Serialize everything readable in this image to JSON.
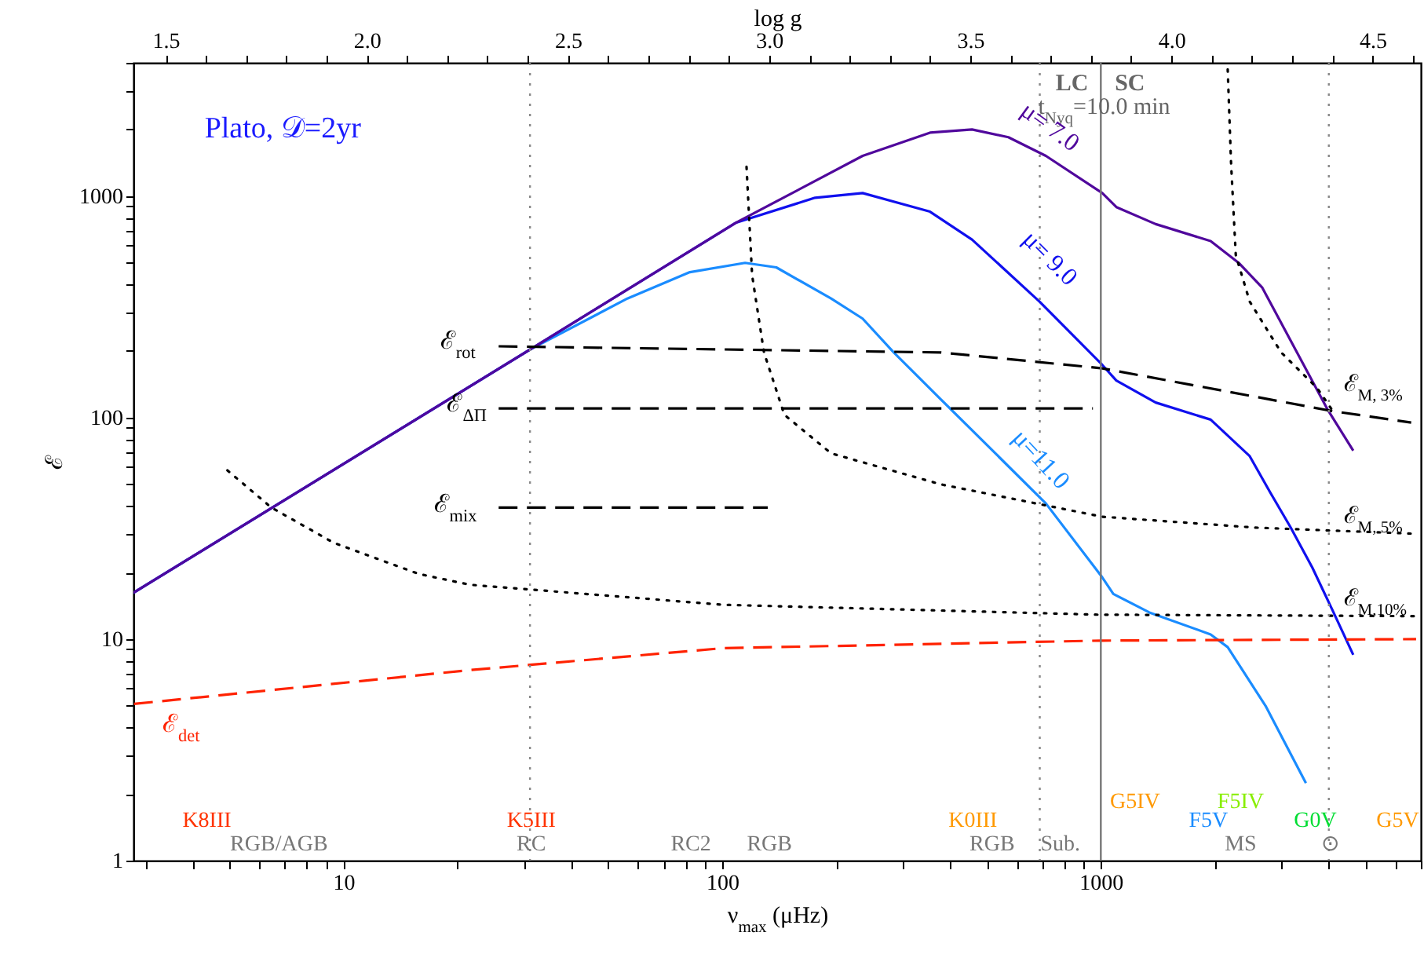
{
  "chart_data": {
    "type": "line",
    "xlabel": "ν$_{max}$ (μHz)",
    "ylabel": "ℰ",
    "x2label": "log g",
    "log": "xy",
    "xlim": [
      2.79,
      7000
    ],
    "ylim": [
      1,
      4000
    ],
    "x2lim": [
      1.42,
      4.62
    ],
    "xticks": [
      {
        "value": 3,
        "label": null
      },
      {
        "value": 4,
        "label": null
      },
      {
        "value": 5,
        "label": null
      },
      {
        "value": 6,
        "label": null
      },
      {
        "value": 7,
        "label": null
      },
      {
        "value": 8,
        "label": null
      },
      {
        "value": 9,
        "label": null
      },
      10,
      {
        "value": 20,
        "label": null
      },
      {
        "value": 30,
        "label": null
      },
      {
        "value": 40,
        "label": null
      },
      {
        "value": 50,
        "label": null
      },
      {
        "value": 60,
        "label": null
      },
      {
        "value": 70,
        "label": null
      },
      {
        "value": 80,
        "label": null
      },
      {
        "value": 90,
        "label": null
      },
      100,
      {
        "value": 200,
        "label": null
      },
      {
        "value": 300,
        "label": null
      },
      {
        "value": 400,
        "label": null
      },
      {
        "value": 500,
        "label": null
      },
      {
        "value": 600,
        "label": null
      },
      {
        "value": 700,
        "label": null
      },
      {
        "value": 800,
        "label": null
      },
      {
        "value": 900,
        "label": null
      },
      1000,
      {
        "value": 2000,
        "label": null
      },
      {
        "value": 3000,
        "label": null
      },
      {
        "value": 4000,
        "label": null
      },
      {
        "value": 5000,
        "label": null
      },
      {
        "value": 6000,
        "label": null
      },
      {
        "value": 7000,
        "label": null
      }
    ],
    "yticks": [
      1,
      {
        "value": 2,
        "label": null
      },
      {
        "value": 3,
        "label": null
      },
      {
        "value": 4,
        "label": null
      },
      {
        "value": 5,
        "label": null
      },
      {
        "value": 6,
        "label": null
      },
      {
        "value": 7,
        "label": null
      },
      {
        "value": 8,
        "label": null
      },
      {
        "value": 9,
        "label": null
      },
      10,
      {
        "value": 20,
        "label": null
      },
      {
        "value": 30,
        "label": null
      },
      {
        "value": 40,
        "label": null
      },
      {
        "value": 50,
        "label": null
      },
      {
        "value": 60,
        "label": null
      },
      {
        "value": 70,
        "label": null
      },
      {
        "value": 80,
        "label": null
      },
      {
        "value": 90,
        "label": null
      },
      100,
      {
        "value": 200,
        "label": null
      },
      {
        "value": 300,
        "label": null
      },
      {
        "value": 400,
        "label": null
      },
      {
        "value": 500,
        "label": null
      },
      {
        "value": 600,
        "label": null
      },
      {
        "value": 700,
        "label": null
      },
      {
        "value": 800,
        "label": null
      },
      {
        "value": 900,
        "label": null
      },
      1000,
      {
        "value": 2000,
        "label": null
      },
      {
        "value": 3000,
        "label": null
      },
      {
        "value": 4000,
        "label": null
      }
    ],
    "x2ticks": [
      1.5,
      {
        "value": 1.6,
        "label": null
      },
      {
        "value": 1.7,
        "label": null
      },
      {
        "value": 1.8,
        "label": null
      },
      {
        "value": 1.9,
        "label": null
      },
      {
        "value": 2,
        "label": "2.0"
      },
      {
        "value": 2.1,
        "label": null
      },
      {
        "value": 2.2,
        "label": null
      },
      {
        "value": 2.3,
        "label": null
      },
      {
        "value": 2.4,
        "label": null
      },
      2.5,
      {
        "value": 2.6,
        "label": null
      },
      {
        "value": 2.7,
        "label": null
      },
      {
        "value": 2.8,
        "label": null
      },
      {
        "value": 2.9,
        "label": null
      },
      {
        "value": 3,
        "label": "3.0"
      },
      {
        "value": 3.1,
        "label": null
      },
      {
        "value": 3.2,
        "label": null
      },
      {
        "value": 3.3,
        "label": null
      },
      {
        "value": 3.4,
        "label": null
      },
      3.5,
      {
        "value": 3.6,
        "label": null
      },
      {
        "value": 3.7,
        "label": null
      },
      {
        "value": 3.8,
        "label": null
      },
      {
        "value": 3.9,
        "label": null
      },
      {
        "value": 4,
        "label": "4.0"
      },
      {
        "value": 4.1,
        "label": null
      },
      {
        "value": 4.2,
        "label": null
      },
      {
        "value": 4.3,
        "label": null
      },
      {
        "value": 4.4,
        "label": null
      },
      4.5,
      {
        "value": 4.6,
        "label": null
      }
    ],
    "series": [
      {
        "color": "#1a8cff",
        "line_style": "solid",
        "x": [
          2.79,
          31.1,
          56.2,
          82.2,
          115,
          139,
          194,
          235,
          284,
          378,
          716,
          1009,
          1079,
          1343,
          1950,
          2163,
          2722,
          3480
        ],
        "values": [
          16.2,
          203,
          345,
          454,
          500,
          477,
          345,
          280,
          197,
          121,
          41,
          19,
          16,
          13.2,
          10.5,
          9.2,
          5.0,
          2.24
        ]
      },
      {
        "color": "#1010ee",
        "line_style": "solid",
        "x": [
          2.79,
          31.1,
          109,
          176,
          235,
          354,
          457,
          689,
          1009,
          1099,
          1396,
          1950,
          2473,
          2800,
          3170,
          3620,
          4100,
          4640
        ],
        "values": [
          16.2,
          203,
          760,
          984,
          1033,
          851,
          637,
          334,
          173,
          147,
          117,
          98,
          67,
          46,
          32,
          21,
          13.4,
          8.5
        ]
      },
      {
        "color": "#50089c",
        "line_style": "solid",
        "x": [
          2.79,
          31.1,
          109,
          235,
          354,
          457,
          570,
          716,
          1009,
          1099,
          1396,
          1950,
          2312,
          2670,
          3980,
          4640
        ],
        "values": [
          16.2,
          203,
          760,
          1520,
          1935,
          2000,
          1845,
          1520,
          1033,
          893,
          748,
          627,
          500,
          386,
          108,
          71
        ]
      },
      {
        "color": "#ff2200",
        "line_style": "dashed",
        "x": [
          2.8,
          21.6,
          100,
          1000,
          6800
        ],
        "values": [
          5.1,
          7.25,
          9.1,
          9.85,
          10.0
        ]
      },
      {
        "color": "#000000",
        "line_style": "dashed",
        "x": [
          25.7,
          378,
          1009,
          4100,
          6600
        ],
        "values": [
          210,
          197,
          167,
          107,
          95
        ]
      },
      {
        "color": "#000000",
        "line_style": "dashed",
        "x": [
          25.7,
          953
        ],
        "values": [
          110,
          110
        ]
      },
      {
        "color": "#000000",
        "line_style": "dashed",
        "x": [
          25.7,
          132
        ],
        "values": [
          39.3,
          39.3
        ]
      },
      {
        "color": "#000000",
        "line_style": "dotted",
        "x": [
          4.94,
          6.45,
          9.44,
          15.8,
          21.6,
          100,
          982,
          6800
        ],
        "values": [
          57.8,
          39.3,
          27.2,
          19.7,
          17.6,
          14.3,
          12.9,
          12.7
        ]
      },
      {
        "color": "#000000",
        "line_style": "dotted",
        "x": [
          116,
          120,
          129,
          146,
          194,
          378,
          1009,
          2547,
          6800
        ],
        "values": [
          1358,
          440,
          197,
          103,
          69,
          50,
          35.7,
          31.9,
          29.9
        ]
      },
      {
        "color": "#000000",
        "line_style": "dotted",
        "x": [
          2163,
          2207,
          2272,
          2473,
          2994,
          3726,
          4100
        ],
        "values": [
          3740,
          1425,
          542,
          334,
          197,
          136,
          107
        ]
      }
    ],
    "ref_lines": [
      {
        "axis": "x",
        "value": 31.1,
        "color": "#888888",
        "line_style": "dotted"
      },
      {
        "axis": "x",
        "value": 690,
        "color": "#888888",
        "line_style": "dotted"
      },
      {
        "axis": "x",
        "value": 4000,
        "color": "#888888",
        "line_style": "dotted"
      },
      {
        "axis": "x",
        "value": 1000,
        "color": "#777777",
        "line_style": "solid"
      }
    ],
    "annotations": [
      "Plato, 𝒟=2yr",
      "LC",
      "SC",
      "t$_{Nyq}$=10.0 min",
      "μ= 7.0",
      "μ= 9.0",
      "μ=11.0",
      "ℰ$_{rot}$",
      "ℰ$_{ΔΠ}$",
      "ℰ$_{mix}$",
      "ℰ$_{det}$",
      "ℰ$_{M, 3%}$",
      "ℰ$_{M, 5%}$",
      "ℰ$_{M,10%}$",
      "K8III",
      "RGB/AGB",
      "K5III",
      "RC",
      "RC2",
      "RGB",
      "K0III",
      "RGB",
      "Sub.",
      "G5IV",
      "F5IV",
      "F5V",
      "G0V",
      "MS",
      "⊙",
      "G5V"
    ]
  }
}
